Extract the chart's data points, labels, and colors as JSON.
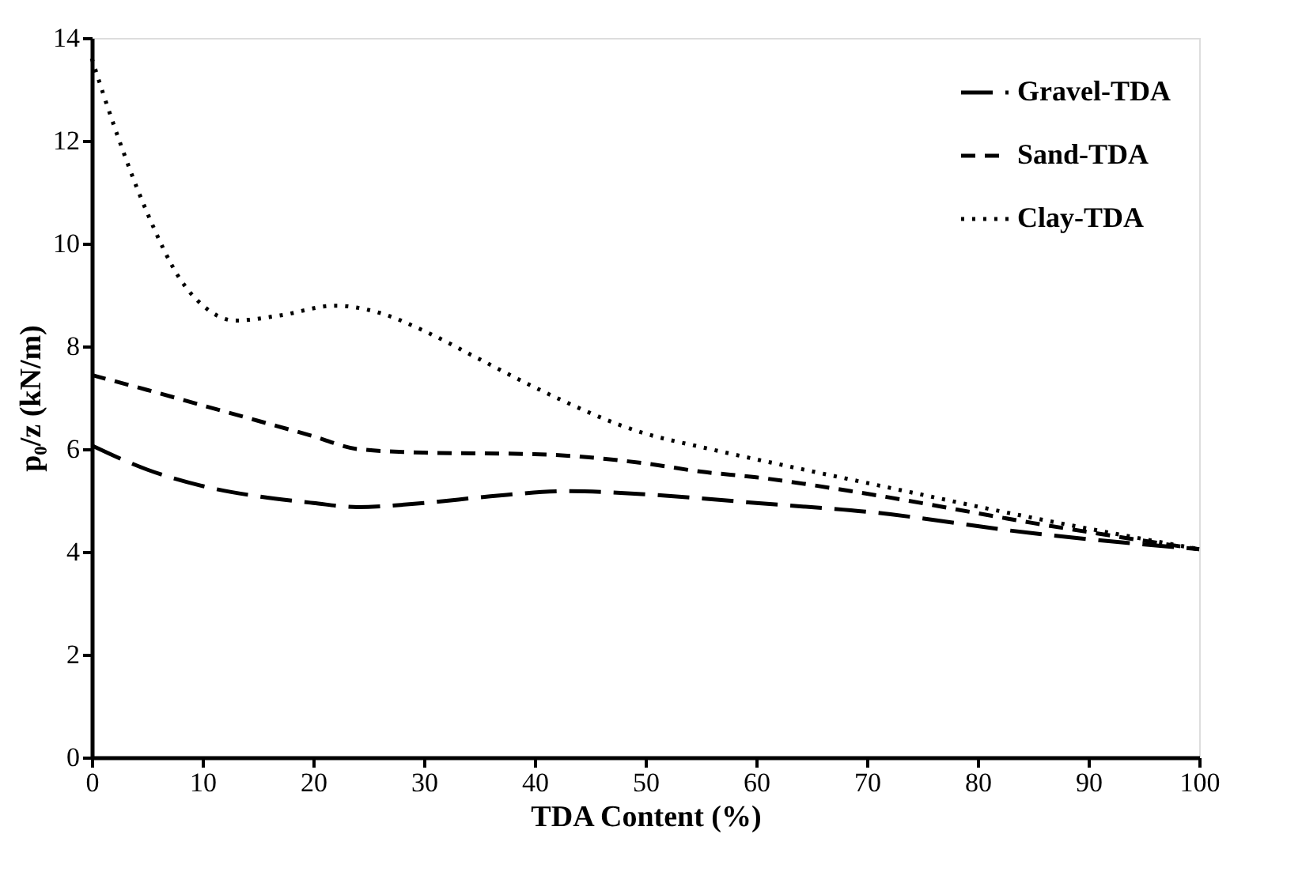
{
  "chart_data": {
    "type": "line",
    "xlabel": "TDA Content (%)",
    "ylabel": "p₀/z (kN/m)",
    "xlim": [
      0,
      100
    ],
    "ylim": [
      0,
      14
    ],
    "xticks": [
      0,
      10,
      20,
      30,
      40,
      50,
      60,
      70,
      80,
      90,
      100
    ],
    "yticks": [
      0,
      2,
      4,
      6,
      8,
      10,
      12,
      14
    ],
    "grid": false,
    "legend": "top right",
    "marker": "none",
    "series": [
      {
        "name": "Gravel-TDA",
        "color": "#000000",
        "line_style": "dashed",
        "x": [
          0,
          5,
          10,
          15,
          20,
          24,
          30,
          36,
          43,
          50,
          55,
          60,
          70,
          85,
          100
        ],
        "values": [
          6.07,
          5.6,
          5.28,
          5.08,
          4.95,
          4.87,
          4.95,
          5.08,
          5.18,
          5.12,
          5.04,
          4.95,
          4.78,
          4.36,
          4.05
        ]
      },
      {
        "name": "Sand-TDA",
        "color": "#000000",
        "line_style": "dashed",
        "x": [
          0,
          5,
          10,
          15,
          20,
          24,
          30,
          40,
          50,
          55,
          60,
          70,
          85,
          100
        ],
        "values": [
          7.44,
          7.15,
          6.85,
          6.55,
          6.25,
          6.0,
          5.93,
          5.9,
          5.72,
          5.56,
          5.45,
          5.13,
          4.56,
          4.05
        ]
      },
      {
        "name": "Clay-TDA",
        "color": "#000000",
        "line_style": "dotted",
        "x": [
          0,
          2,
          5,
          8,
          10,
          13,
          17,
          22,
          26,
          30,
          35,
          40,
          50,
          55,
          60,
          70,
          85,
          100
        ],
        "values": [
          13.6,
          12.3,
          10.6,
          9.3,
          8.8,
          8.5,
          8.6,
          8.79,
          8.65,
          8.3,
          7.75,
          7.2,
          6.3,
          6.04,
          5.8,
          5.34,
          4.66,
          4.05
        ]
      }
    ]
  }
}
